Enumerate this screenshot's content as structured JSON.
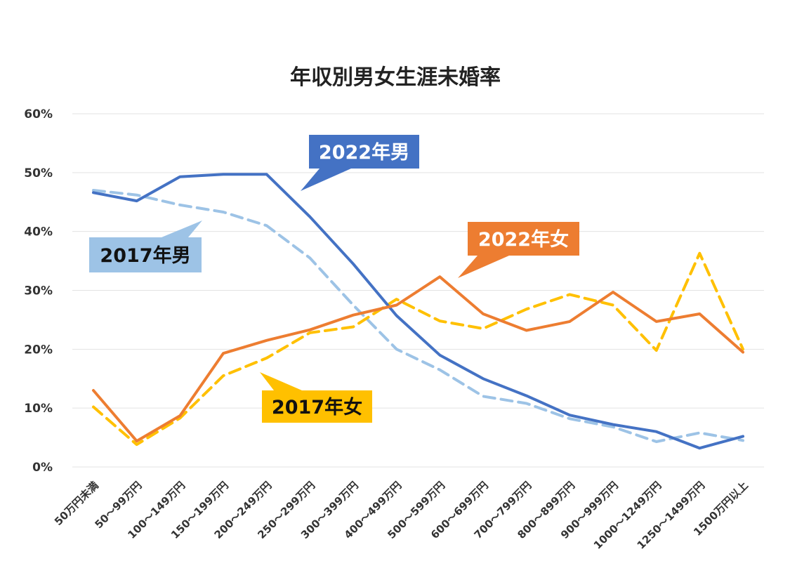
{
  "chart_data": {
    "type": "line",
    "title": "年収別男女生涯未婚率",
    "xlabel": "",
    "ylabel": "",
    "ylim": [
      0,
      0.6
    ],
    "yticks": [
      "0%",
      "10%",
      "20%",
      "30%",
      "40%",
      "50%",
      "60%"
    ],
    "grid": true,
    "categories": [
      "50万円未満",
      "50～99万円",
      "100～149万円",
      "150～199万円",
      "200～249万円",
      "250～299万円",
      "300～399万円",
      "400～499万円",
      "500～599万円",
      "600～699万円",
      "700～799万円",
      "800～899万円",
      "900～999万円",
      "1000～1249万円",
      "1250～1499万円",
      "1500万円以上"
    ],
    "series": [
      {
        "name": "2022年男",
        "color": "#4472c4",
        "style": "solid",
        "values": [
          0.466,
          0.452,
          0.493,
          0.497,
          0.497,
          0.425,
          0.345,
          0.257,
          0.19,
          0.15,
          0.121,
          0.088,
          0.072,
          0.06,
          0.032,
          0.052
        ]
      },
      {
        "name": "2017年男",
        "color": "#9dc3e6",
        "style": "dashed",
        "values": [
          0.47,
          0.462,
          0.445,
          0.433,
          0.41,
          0.355,
          0.275,
          0.2,
          0.165,
          0.12,
          0.108,
          0.082,
          0.068,
          0.043,
          0.058,
          0.045
        ]
      },
      {
        "name": "2022年女",
        "color": "#ed7d31",
        "style": "solid",
        "values": [
          0.13,
          0.044,
          0.087,
          0.193,
          0.215,
          0.233,
          0.258,
          0.275,
          0.323,
          0.26,
          0.232,
          0.247,
          0.297,
          0.247,
          0.26,
          0.195
        ]
      },
      {
        "name": "2017年女",
        "color": "#ffc000",
        "style": "dashed",
        "values": [
          0.102,
          0.038,
          0.083,
          0.155,
          0.185,
          0.228,
          0.238,
          0.285,
          0.248,
          0.235,
          0.268,
          0.293,
          0.275,
          0.198,
          0.363,
          0.2
        ]
      }
    ],
    "annotations": [
      {
        "text": "2022年男",
        "bg": "#4472c4",
        "fg": "#ffffff",
        "target_index": 5,
        "target_series": 0
      },
      {
        "text": "2017年男",
        "bg": "#9dc3e6",
        "fg": "#111111",
        "target_index": 3,
        "target_series": 1
      },
      {
        "text": "2022年女",
        "bg": "#ed7d31",
        "fg": "#ffffff",
        "target_index": 8,
        "target_series": 2
      },
      {
        "text": "2017年女",
        "bg": "#ffc000",
        "fg": "#111111",
        "target_index": 4,
        "target_series": 3
      }
    ]
  }
}
